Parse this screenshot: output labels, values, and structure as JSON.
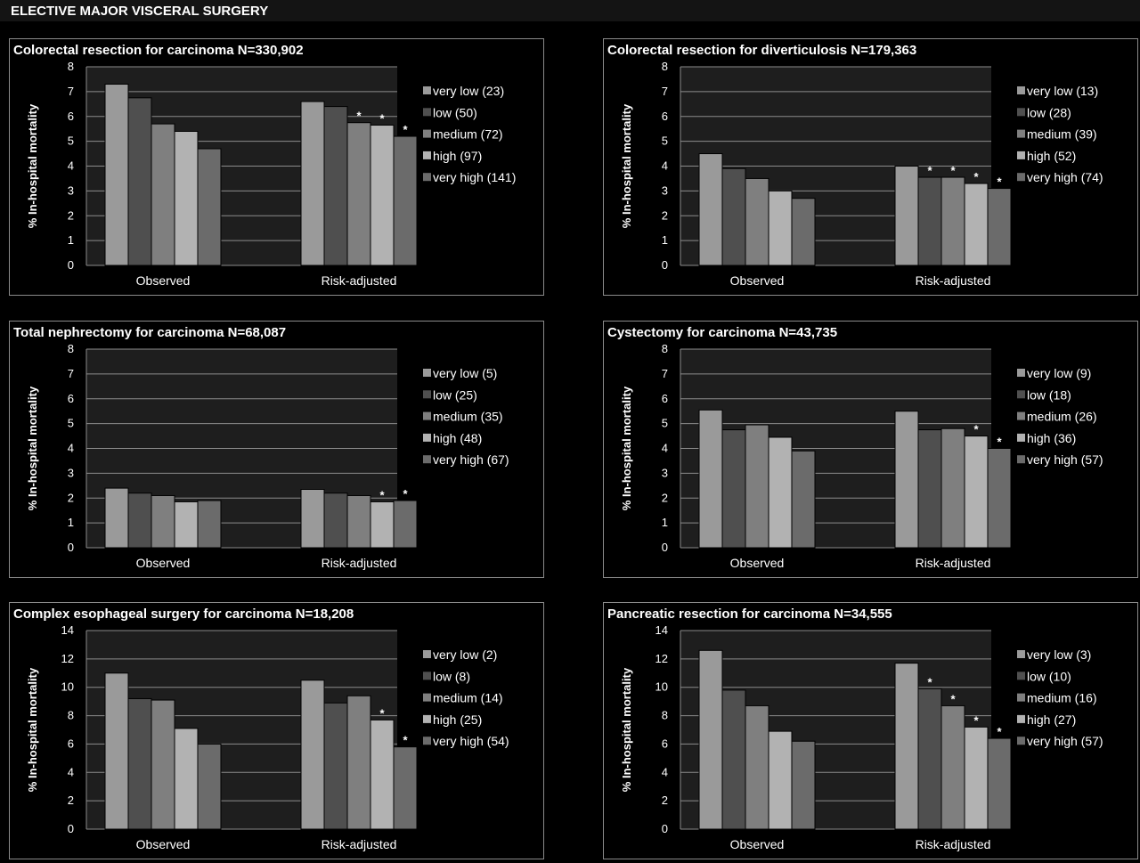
{
  "header": {
    "title": "ELECTIVE MAJOR VISCERAL SURGERY"
  },
  "colors": {
    "background": "#000000",
    "plot_area": "#1e1e1e",
    "gridline": "#8c8c8c",
    "series": [
      "#9a9a9a",
      "#4f4f4f",
      "#7f7f7f",
      "#b2b2b2",
      "#6b6b6b"
    ]
  },
  "chart_data": [
    {
      "type": "bar",
      "title": "Colorectal resection for carcinoma N=330,902",
      "ylabel": "% In-hospital mortality",
      "categories": [
        "Observed",
        "Risk-adjusted"
      ],
      "ylim": [
        0,
        8
      ],
      "yticks": [
        0,
        1,
        2,
        3,
        4,
        5,
        6,
        7,
        8
      ],
      "grid": true,
      "legend": "right",
      "series": [
        {
          "name": "very low (23)",
          "values": [
            7.3,
            6.6
          ],
          "stars": [
            false,
            false
          ]
        },
        {
          "name": "low (50)",
          "values": [
            6.75,
            6.4
          ],
          "stars": [
            false,
            false
          ]
        },
        {
          "name": "medium (72)",
          "values": [
            5.7,
            5.75
          ],
          "stars": [
            false,
            true
          ]
        },
        {
          "name": "high (97)",
          "values": [
            5.4,
            5.65
          ],
          "stars": [
            false,
            true
          ]
        },
        {
          "name": "very high (141)",
          "values": [
            4.7,
            5.2
          ],
          "stars": [
            false,
            true
          ]
        }
      ]
    },
    {
      "type": "bar",
      "title": "Colorectal resection for diverticulosis N=179,363",
      "ylabel": "% In-hospital mortality",
      "categories": [
        "Observed",
        "Risk-adjusted"
      ],
      "ylim": [
        0,
        8
      ],
      "yticks": [
        0,
        1,
        2,
        3,
        4,
        5,
        6,
        7,
        8
      ],
      "grid": true,
      "legend": "right",
      "series": [
        {
          "name": "very low (13)",
          "values": [
            4.5,
            4.0
          ],
          "stars": [
            false,
            false
          ]
        },
        {
          "name": "low (28)",
          "values": [
            3.9,
            3.55
          ],
          "stars": [
            false,
            true
          ]
        },
        {
          "name": "medium (39)",
          "values": [
            3.5,
            3.55
          ],
          "stars": [
            false,
            true
          ]
        },
        {
          "name": "high (52)",
          "values": [
            3.0,
            3.3
          ],
          "stars": [
            false,
            true
          ]
        },
        {
          "name": "very high (74)",
          "values": [
            2.7,
            3.1
          ],
          "stars": [
            false,
            true
          ]
        }
      ]
    },
    {
      "type": "bar",
      "title": "Total nephrectomy for carcinoma N=68,087",
      "ylabel": "% In-hospital mortality",
      "categories": [
        "Observed",
        "Risk-adjusted"
      ],
      "ylim": [
        0,
        8
      ],
      "yticks": [
        0,
        1,
        2,
        3,
        4,
        5,
        6,
        7,
        8
      ],
      "grid": true,
      "legend": "right",
      "series": [
        {
          "name": "very low (5)",
          "values": [
            2.4,
            2.35
          ],
          "stars": [
            false,
            false
          ]
        },
        {
          "name": "low (25)",
          "values": [
            2.2,
            2.2
          ],
          "stars": [
            false,
            false
          ]
        },
        {
          "name": "medium (35)",
          "values": [
            2.1,
            2.1
          ],
          "stars": [
            false,
            false
          ]
        },
        {
          "name": "high (48)",
          "values": [
            1.85,
            1.85
          ],
          "stars": [
            false,
            true
          ]
        },
        {
          "name": "very high (67)",
          "values": [
            1.9,
            1.9
          ],
          "stars": [
            false,
            true
          ]
        }
      ]
    },
    {
      "type": "bar",
      "title": "Cystectomy for carcinoma N=43,735",
      "ylabel": "% In-hospital mortality",
      "categories": [
        "Observed",
        "Risk-adjusted"
      ],
      "ylim": [
        0,
        8
      ],
      "yticks": [
        0,
        1,
        2,
        3,
        4,
        5,
        6,
        7,
        8
      ],
      "grid": true,
      "legend": "right",
      "series": [
        {
          "name": "very low (9)",
          "values": [
            5.55,
            5.5
          ],
          "stars": [
            false,
            false
          ]
        },
        {
          "name": "low (18)",
          "values": [
            4.75,
            4.75
          ],
          "stars": [
            false,
            false
          ]
        },
        {
          "name": "medium (26)",
          "values": [
            4.95,
            4.8
          ],
          "stars": [
            false,
            false
          ]
        },
        {
          "name": "high (36)",
          "values": [
            4.45,
            4.5
          ],
          "stars": [
            false,
            true
          ]
        },
        {
          "name": "very high (57)",
          "values": [
            3.9,
            4.0
          ],
          "stars": [
            false,
            true
          ]
        }
      ]
    },
    {
      "type": "bar",
      "title": "Complex esophageal surgery for carcinoma N=18,208",
      "ylabel": "% In-hospital mortality",
      "categories": [
        "Observed",
        "Risk-adjusted"
      ],
      "ylim": [
        0,
        14
      ],
      "yticks": [
        0,
        2,
        4,
        6,
        8,
        10,
        12,
        14
      ],
      "grid": true,
      "legend": "right",
      "series": [
        {
          "name": "very low (2)",
          "values": [
            11.0,
            10.5
          ],
          "stars": [
            false,
            false
          ]
        },
        {
          "name": "low (8)",
          "values": [
            9.2,
            8.9
          ],
          "stars": [
            false,
            false
          ]
        },
        {
          "name": "medium (14)",
          "values": [
            9.1,
            9.4
          ],
          "stars": [
            false,
            false
          ]
        },
        {
          "name": "high (25)",
          "values": [
            7.1,
            7.7
          ],
          "stars": [
            false,
            true
          ]
        },
        {
          "name": "very high (54)",
          "values": [
            6.0,
            5.8
          ],
          "stars": [
            false,
            true
          ]
        }
      ]
    },
    {
      "type": "bar",
      "title": "Pancreatic resection for carcinoma N=34,555",
      "ylabel": "% In-hospital mortality",
      "categories": [
        "Observed",
        "Risk-adjusted"
      ],
      "ylim": [
        0,
        14
      ],
      "yticks": [
        0,
        2,
        4,
        6,
        8,
        10,
        12,
        14
      ],
      "grid": true,
      "legend": "right",
      "series": [
        {
          "name": "very low (3)",
          "values": [
            12.6,
            11.7
          ],
          "stars": [
            false,
            false
          ]
        },
        {
          "name": "low (10)",
          "values": [
            9.8,
            9.9
          ],
          "stars": [
            false,
            true
          ]
        },
        {
          "name": "medium (16)",
          "values": [
            8.7,
            8.7
          ],
          "stars": [
            false,
            true
          ]
        },
        {
          "name": "high (27)",
          "values": [
            6.9,
            7.2
          ],
          "stars": [
            false,
            true
          ]
        },
        {
          "name": "very high (57)",
          "values": [
            6.2,
            6.4
          ],
          "stars": [
            false,
            true
          ]
        }
      ]
    }
  ]
}
